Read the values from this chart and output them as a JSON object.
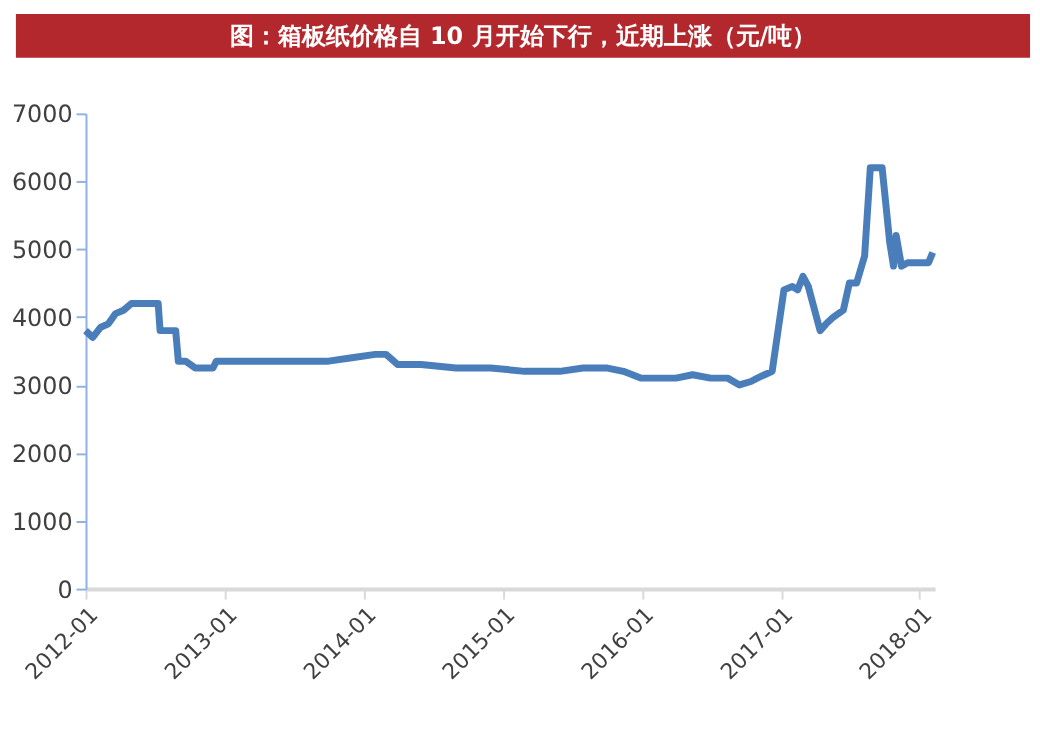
{
  "chart_data": {
    "type": "line",
    "title": "图：箱板纸价格自 10 月开始下行，近期上涨（元/吨）",
    "x": [
      "2012-01-01",
      "2012-01-20",
      "2012-02-10",
      "2012-03-01",
      "2012-03-20",
      "2012-04-10",
      "2012-05-01",
      "2012-05-20",
      "2012-06-10",
      "2012-07-10",
      "2012-07-15",
      "2012-08-25",
      "2012-09-01",
      "2012-09-20",
      "2012-10-15",
      "2012-11-01",
      "2012-12-01",
      "2012-12-10",
      "2013-02-01",
      "2013-05-01",
      "2013-08-01",
      "2013-10-01",
      "2013-12-01",
      "2014-02-01",
      "2014-03-01",
      "2014-04-01",
      "2014-06-01",
      "2014-09-01",
      "2014-12-01",
      "2015-03-01",
      "2015-06-01",
      "2015-08-01",
      "2015-10-01",
      "2015-11-15",
      "2016-01-01",
      "2016-04-01",
      "2016-05-15",
      "2016-07-01",
      "2016-08-15",
      "2016-09-15",
      "2016-10-15",
      "2016-11-01",
      "2016-11-20",
      "2016-12-10",
      "2017-01-10",
      "2017-02-01",
      "2017-02-15",
      "2017-03-01",
      "2017-03-15",
      "2017-04-15",
      "2017-05-01",
      "2017-05-20",
      "2017-06-15",
      "2017-07-01",
      "2017-07-20",
      "2017-08-10",
      "2017-08-25",
      "2017-09-25",
      "2017-10-15",
      "2017-10-25",
      "2017-11-01",
      "2017-11-15",
      "2017-12-01",
      "2018-01-10",
      "2018-01-25",
      "2018-02-05"
    ],
    "series": [
      {
        "color": "#4a7ebb",
        "values": [
          3800,
          3700,
          3850,
          3900,
          4050,
          4100,
          4200,
          4200,
          4200,
          4200,
          3800,
          3800,
          3350,
          3350,
          3250,
          3250,
          3250,
          3350,
          3350,
          3350,
          3350,
          3350,
          3400,
          3450,
          3450,
          3300,
          3300,
          3250,
          3250,
          3200,
          3200,
          3250,
          3250,
          3200,
          3100,
          3100,
          3150,
          3100,
          3100,
          3000,
          3050,
          3100,
          3150,
          3200,
          4400,
          4450,
          4400,
          4600,
          4450,
          3800,
          3900,
          4000,
          4100,
          4500,
          4500,
          4900,
          6200,
          6200,
          5100,
          4750,
          5200,
          4750,
          4800,
          4800,
          4800,
          4950
        ]
      }
    ],
    "ylim": [
      0,
      7000
    ],
    "yticks": [
      0,
      1000,
      2000,
      3000,
      4000,
      5000,
      6000,
      7000
    ],
    "xlim": [
      "2012-01-01",
      "2018-02-10"
    ],
    "xticks": [
      {
        "value": "2012-01-01",
        "label": "2012-01"
      },
      {
        "value": "2013-01-01",
        "label": "2013-01"
      },
      {
        "value": "2014-01-01",
        "label": "2014-01"
      },
      {
        "value": "2015-01-01",
        "label": "2015-01"
      },
      {
        "value": "2016-01-01",
        "label": "2016-01"
      },
      {
        "value": "2017-01-01",
        "label": "2017-01"
      },
      {
        "value": "2018-01-01",
        "label": "2018-01"
      }
    ],
    "grid": false,
    "legend": false,
    "marker": "none",
    "line_style": "solid"
  }
}
